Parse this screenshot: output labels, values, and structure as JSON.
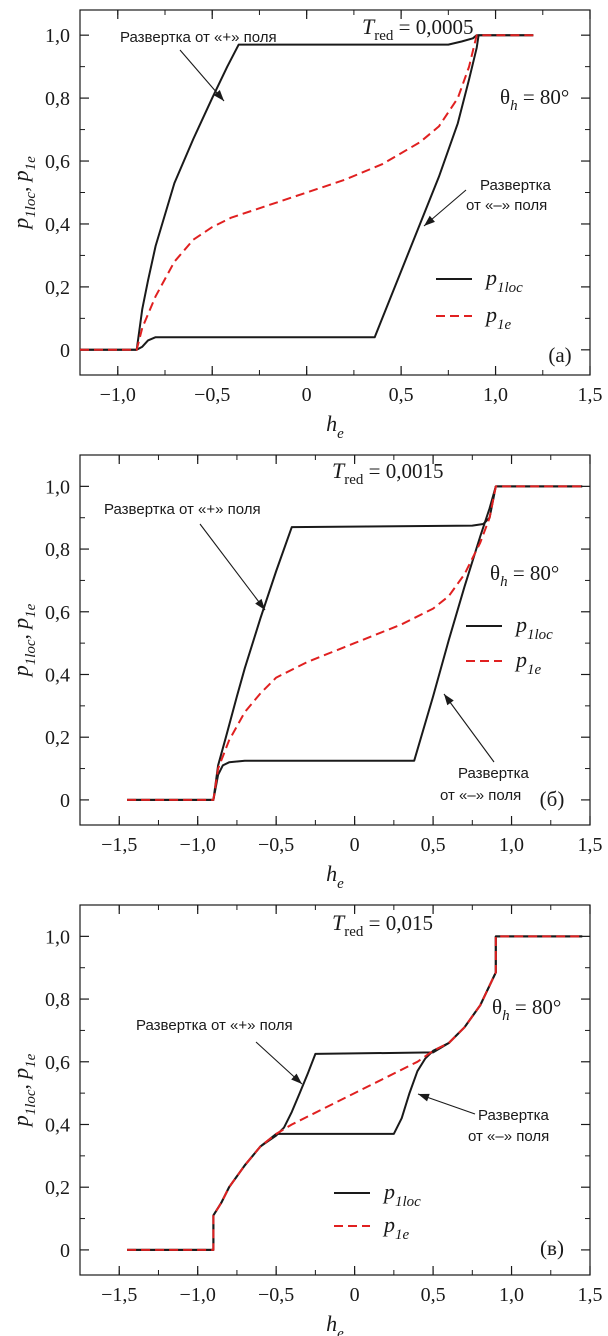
{
  "chart_data": [
    {
      "type": "line",
      "panel_label": "(а)",
      "title_text": {
        "T": "T",
        "sub": "red",
        "value": "= 0,0005"
      },
      "theta_text": {
        "theta": "θ",
        "sub": "h",
        "value": "= 80°"
      },
      "xlabel": {
        "main": "h",
        "sub": "e"
      },
      "ylabel": "p1loc, p1e",
      "xlim": [
        -1.2,
        1.5
      ],
      "ylim": [
        -0.08,
        1.08
      ],
      "x_ticks": [
        {
          "v": -1.0,
          "label": "−1,0"
        },
        {
          "v": -0.5,
          "label": "−0,5"
        },
        {
          "v": 0,
          "label": "0"
        },
        {
          "v": 0.5,
          "label": "0,5"
        },
        {
          "v": 1.0,
          "label": "1,0"
        },
        {
          "v": 1.5,
          "label": "1,5"
        }
      ],
      "y_ticks": [
        {
          "v": 0,
          "label": "0"
        },
        {
          "v": 0.2,
          "label": "0,2"
        },
        {
          "v": 0.4,
          "label": "0,4"
        },
        {
          "v": 0.6,
          "label": "0,6"
        },
        {
          "v": 0.8,
          "label": "0,8"
        },
        {
          "v": 1.0,
          "label": "1,0"
        }
      ],
      "legend": [
        {
          "main": "p",
          "sub": "1loc",
          "style": "solid",
          "color": "#1a1a1a"
        },
        {
          "main": "p",
          "sub": "1e",
          "style": "dashed",
          "color": "#e02020"
        }
      ],
      "annotations": [
        {
          "text": "Развертка от «+» поля",
          "anchor": "plus"
        },
        {
          "text": "Развертка",
          "text2": "от «–» поля",
          "anchor": "minus"
        }
      ],
      "series": [
        {
          "name": "p1loc",
          "style": "solid",
          "color": "#1a1a1a",
          "points": [
            [
              -1.2,
              0
            ],
            [
              -0.9,
              0
            ],
            [
              -0.87,
              0.01
            ],
            [
              -0.84,
              0.03
            ],
            [
              -0.8,
              0.04
            ],
            [
              -0.75,
              0.04
            ],
            [
              0.36,
              0.04
            ],
            [
              0.5,
              0.25
            ],
            [
              0.6,
              0.4
            ],
            [
              0.7,
              0.55
            ],
            [
              0.8,
              0.72
            ],
            [
              0.86,
              0.86
            ],
            [
              0.9,
              0.96
            ],
            [
              0.91,
              1.0
            ],
            [
              1.2,
              1.0
            ]
          ]
        },
        {
          "name": "p1loc",
          "style": "solid",
          "color": "#1a1a1a",
          "points": [
            [
              -1.2,
              0
            ],
            [
              -0.9,
              0
            ],
            [
              -0.87,
              0.13
            ],
            [
              -0.84,
              0.22
            ],
            [
              -0.8,
              0.33
            ],
            [
              -0.7,
              0.53
            ],
            [
              -0.6,
              0.67
            ],
            [
              -0.5,
              0.8
            ],
            [
              -0.42,
              0.9
            ],
            [
              -0.36,
              0.97
            ],
            [
              0.75,
              0.97
            ],
            [
              0.82,
              0.98
            ],
            [
              0.88,
              0.99
            ],
            [
              0.9,
              1.0
            ],
            [
              1.2,
              1.0
            ]
          ]
        },
        {
          "name": "p1e",
          "style": "dashed",
          "color": "#e02020",
          "points": [
            [
              -1.2,
              0
            ],
            [
              -0.9,
              0
            ],
            [
              -0.87,
              0.07
            ],
            [
              -0.8,
              0.17
            ],
            [
              -0.7,
              0.28
            ],
            [
              -0.6,
              0.35
            ],
            [
              -0.5,
              0.39
            ],
            [
              -0.4,
              0.42
            ],
            [
              -0.2,
              0.46
            ],
            [
              0,
              0.5
            ],
            [
              0.2,
              0.54
            ],
            [
              0.4,
              0.59
            ],
            [
              0.6,
              0.66
            ],
            [
              0.7,
              0.71
            ],
            [
              0.8,
              0.8
            ],
            [
              0.86,
              0.9
            ],
            [
              0.9,
              1.0
            ],
            [
              1.2,
              1.0
            ]
          ]
        }
      ]
    },
    {
      "type": "line",
      "panel_label": "(б)",
      "title_text": {
        "T": "T",
        "sub": "red",
        "value": "= 0,0015"
      },
      "theta_text": {
        "theta": "θ",
        "sub": "h",
        "value": "= 80°"
      },
      "xlabel": {
        "main": "h",
        "sub": "e"
      },
      "ylabel": "p1loc, p1e",
      "xlim": [
        -1.75,
        1.5
      ],
      "ylim": [
        -0.08,
        1.1
      ],
      "x_ticks": [
        {
          "v": -1.5,
          "label": "−1,5"
        },
        {
          "v": -1.0,
          "label": "−1,0"
        },
        {
          "v": -0.5,
          "label": "−0,5"
        },
        {
          "v": 0,
          "label": "0"
        },
        {
          "v": 0.5,
          "label": "0,5"
        },
        {
          "v": 1.0,
          "label": "1,0"
        },
        {
          "v": 1.5,
          "label": "1,5"
        }
      ],
      "y_ticks": [
        {
          "v": 0,
          "label": "0"
        },
        {
          "v": 0.2,
          "label": "0,2"
        },
        {
          "v": 0.4,
          "label": "0,4"
        },
        {
          "v": 0.6,
          "label": "0,6"
        },
        {
          "v": 0.8,
          "label": "0,8"
        },
        {
          "v": 1.0,
          "label": "1,0"
        }
      ],
      "legend": [
        {
          "main": "p",
          "sub": "1loc",
          "style": "solid",
          "color": "#1a1a1a"
        },
        {
          "main": "p",
          "sub": "1e",
          "style": "dashed",
          "color": "#e02020"
        }
      ],
      "annotations": [
        {
          "text": "Развертка от «+» поля",
          "anchor": "plus"
        },
        {
          "text": "Развертка",
          "text2": "от «–» поля",
          "anchor": "minus"
        }
      ],
      "series": [
        {
          "name": "p1loc",
          "style": "solid",
          "color": "#1a1a1a",
          "points": [
            [
              -1.45,
              0
            ],
            [
              -0.9,
              0
            ],
            [
              -0.87,
              0.08
            ],
            [
              -0.84,
              0.11
            ],
            [
              -0.8,
              0.12
            ],
            [
              -0.7,
              0.125
            ],
            [
              0.38,
              0.125
            ],
            [
              0.5,
              0.33
            ],
            [
              0.6,
              0.51
            ],
            [
              0.7,
              0.68
            ],
            [
              0.8,
              0.84
            ],
            [
              0.86,
              0.93
            ],
            [
              0.9,
              1.0
            ],
            [
              1.45,
              1.0
            ]
          ]
        },
        {
          "name": "p1loc",
          "style": "solid",
          "color": "#1a1a1a",
          "points": [
            [
              -1.45,
              0
            ],
            [
              -0.9,
              0
            ],
            [
              -0.87,
              0.11
            ],
            [
              -0.82,
              0.2
            ],
            [
              -0.75,
              0.33
            ],
            [
              -0.7,
              0.42
            ],
            [
              -0.6,
              0.58
            ],
            [
              -0.5,
              0.73
            ],
            [
              -0.4,
              0.87
            ],
            [
              0.75,
              0.875
            ],
            [
              0.82,
              0.88
            ],
            [
              0.86,
              0.9
            ],
            [
              0.9,
              1.0
            ],
            [
              1.45,
              1.0
            ]
          ]
        },
        {
          "name": "p1e",
          "style": "dashed",
          "color": "#e02020",
          "points": [
            [
              -1.45,
              0
            ],
            [
              -0.9,
              0
            ],
            [
              -0.87,
              0.1
            ],
            [
              -0.8,
              0.19
            ],
            [
              -0.7,
              0.28
            ],
            [
              -0.6,
              0.34
            ],
            [
              -0.5,
              0.39
            ],
            [
              -0.3,
              0.44
            ],
            [
              0,
              0.5
            ],
            [
              0.3,
              0.56
            ],
            [
              0.5,
              0.61
            ],
            [
              0.6,
              0.65
            ],
            [
              0.7,
              0.72
            ],
            [
              0.8,
              0.82
            ],
            [
              0.86,
              0.9
            ],
            [
              0.9,
              1.0
            ],
            [
              1.45,
              1.0
            ]
          ]
        }
      ]
    },
    {
      "type": "line",
      "panel_label": "(в)",
      "title_text": {
        "T": "T",
        "sub": "red",
        "value": "= 0,015"
      },
      "theta_text": {
        "theta": "θ",
        "sub": "h",
        "value": "= 80°"
      },
      "xlabel": {
        "main": "h",
        "sub": "e"
      },
      "ylabel": "p1loc, p1e",
      "xlim": [
        -1.75,
        1.5
      ],
      "ylim": [
        -0.08,
        1.1
      ],
      "x_ticks": [
        {
          "v": -1.5,
          "label": "−1,5"
        },
        {
          "v": -1.0,
          "label": "−1,0"
        },
        {
          "v": -0.5,
          "label": "−0,5"
        },
        {
          "v": 0,
          "label": "0"
        },
        {
          "v": 0.5,
          "label": "0,5"
        },
        {
          "v": 1.0,
          "label": "1,0"
        },
        {
          "v": 1.5,
          "label": "1,5"
        }
      ],
      "y_ticks": [
        {
          "v": 0,
          "label": "0"
        },
        {
          "v": 0.2,
          "label": "0,2"
        },
        {
          "v": 0.4,
          "label": "0,4"
        },
        {
          "v": 0.6,
          "label": "0,6"
        },
        {
          "v": 0.8,
          "label": "0,8"
        },
        {
          "v": 1.0,
          "label": "1,0"
        }
      ],
      "legend": [
        {
          "main": "p",
          "sub": "1loc",
          "style": "solid",
          "color": "#1a1a1a"
        },
        {
          "main": "p",
          "sub": "1e",
          "style": "dashed",
          "color": "#e02020"
        }
      ],
      "annotations": [
        {
          "text": "Развертка от «+» поля",
          "anchor": "plus"
        },
        {
          "text": "Развертка",
          "text2": "от «–» поля",
          "anchor": "minus"
        }
      ],
      "series": [
        {
          "name": "p1loc",
          "style": "solid",
          "color": "#1a1a1a",
          "points": [
            [
              -1.45,
              0
            ],
            [
              -0.9,
              0
            ],
            [
              -0.9,
              0.11
            ],
            [
              -0.85,
              0.15
            ],
            [
              -0.8,
              0.2
            ],
            [
              -0.7,
              0.27
            ],
            [
              -0.6,
              0.33
            ],
            [
              -0.5,
              0.37
            ],
            [
              0.25,
              0.37
            ],
            [
              0.3,
              0.42
            ],
            [
              0.35,
              0.5
            ],
            [
              0.4,
              0.57
            ],
            [
              0.45,
              0.61
            ],
            [
              0.5,
              0.635
            ],
            [
              0.6,
              0.66
            ],
            [
              0.7,
              0.71
            ],
            [
              0.8,
              0.78
            ],
            [
              0.9,
              0.885
            ],
            [
              0.9,
              1.0
            ],
            [
              1.45,
              1.0
            ]
          ]
        },
        {
          "name": "p1loc",
          "style": "solid",
          "color": "#1a1a1a",
          "points": [
            [
              -1.45,
              0
            ],
            [
              -0.9,
              0
            ],
            [
              -0.9,
              0.11
            ],
            [
              -0.85,
              0.15
            ],
            [
              -0.8,
              0.2
            ],
            [
              -0.7,
              0.27
            ],
            [
              -0.6,
              0.33
            ],
            [
              -0.5,
              0.365
            ],
            [
              -0.45,
              0.39
            ],
            [
              -0.4,
              0.44
            ],
            [
              -0.35,
              0.5
            ],
            [
              -0.3,
              0.56
            ],
            [
              -0.25,
              0.625
            ],
            [
              0.5,
              0.63
            ],
            [
              0.6,
              0.66
            ],
            [
              0.7,
              0.71
            ],
            [
              0.8,
              0.78
            ],
            [
              0.9,
              0.885
            ],
            [
              0.9,
              1.0
            ],
            [
              1.45,
              1.0
            ]
          ]
        },
        {
          "name": "p1e",
          "style": "dashed",
          "color": "#e02020",
          "points": [
            [
              -1.45,
              0
            ],
            [
              -0.9,
              0
            ],
            [
              -0.9,
              0.11
            ],
            [
              -0.85,
              0.15
            ],
            [
              -0.8,
              0.2
            ],
            [
              -0.7,
              0.27
            ],
            [
              -0.6,
              0.33
            ],
            [
              -0.5,
              0.37
            ],
            [
              -0.4,
              0.4
            ],
            [
              -0.2,
              0.45
            ],
            [
              0,
              0.5
            ],
            [
              0.2,
              0.55
            ],
            [
              0.4,
              0.6
            ],
            [
              0.5,
              0.635
            ],
            [
              0.6,
              0.66
            ],
            [
              0.7,
              0.71
            ],
            [
              0.8,
              0.78
            ],
            [
              0.9,
              0.885
            ],
            [
              0.9,
              1.0
            ],
            [
              1.45,
              1.0
            ]
          ]
        }
      ]
    }
  ]
}
